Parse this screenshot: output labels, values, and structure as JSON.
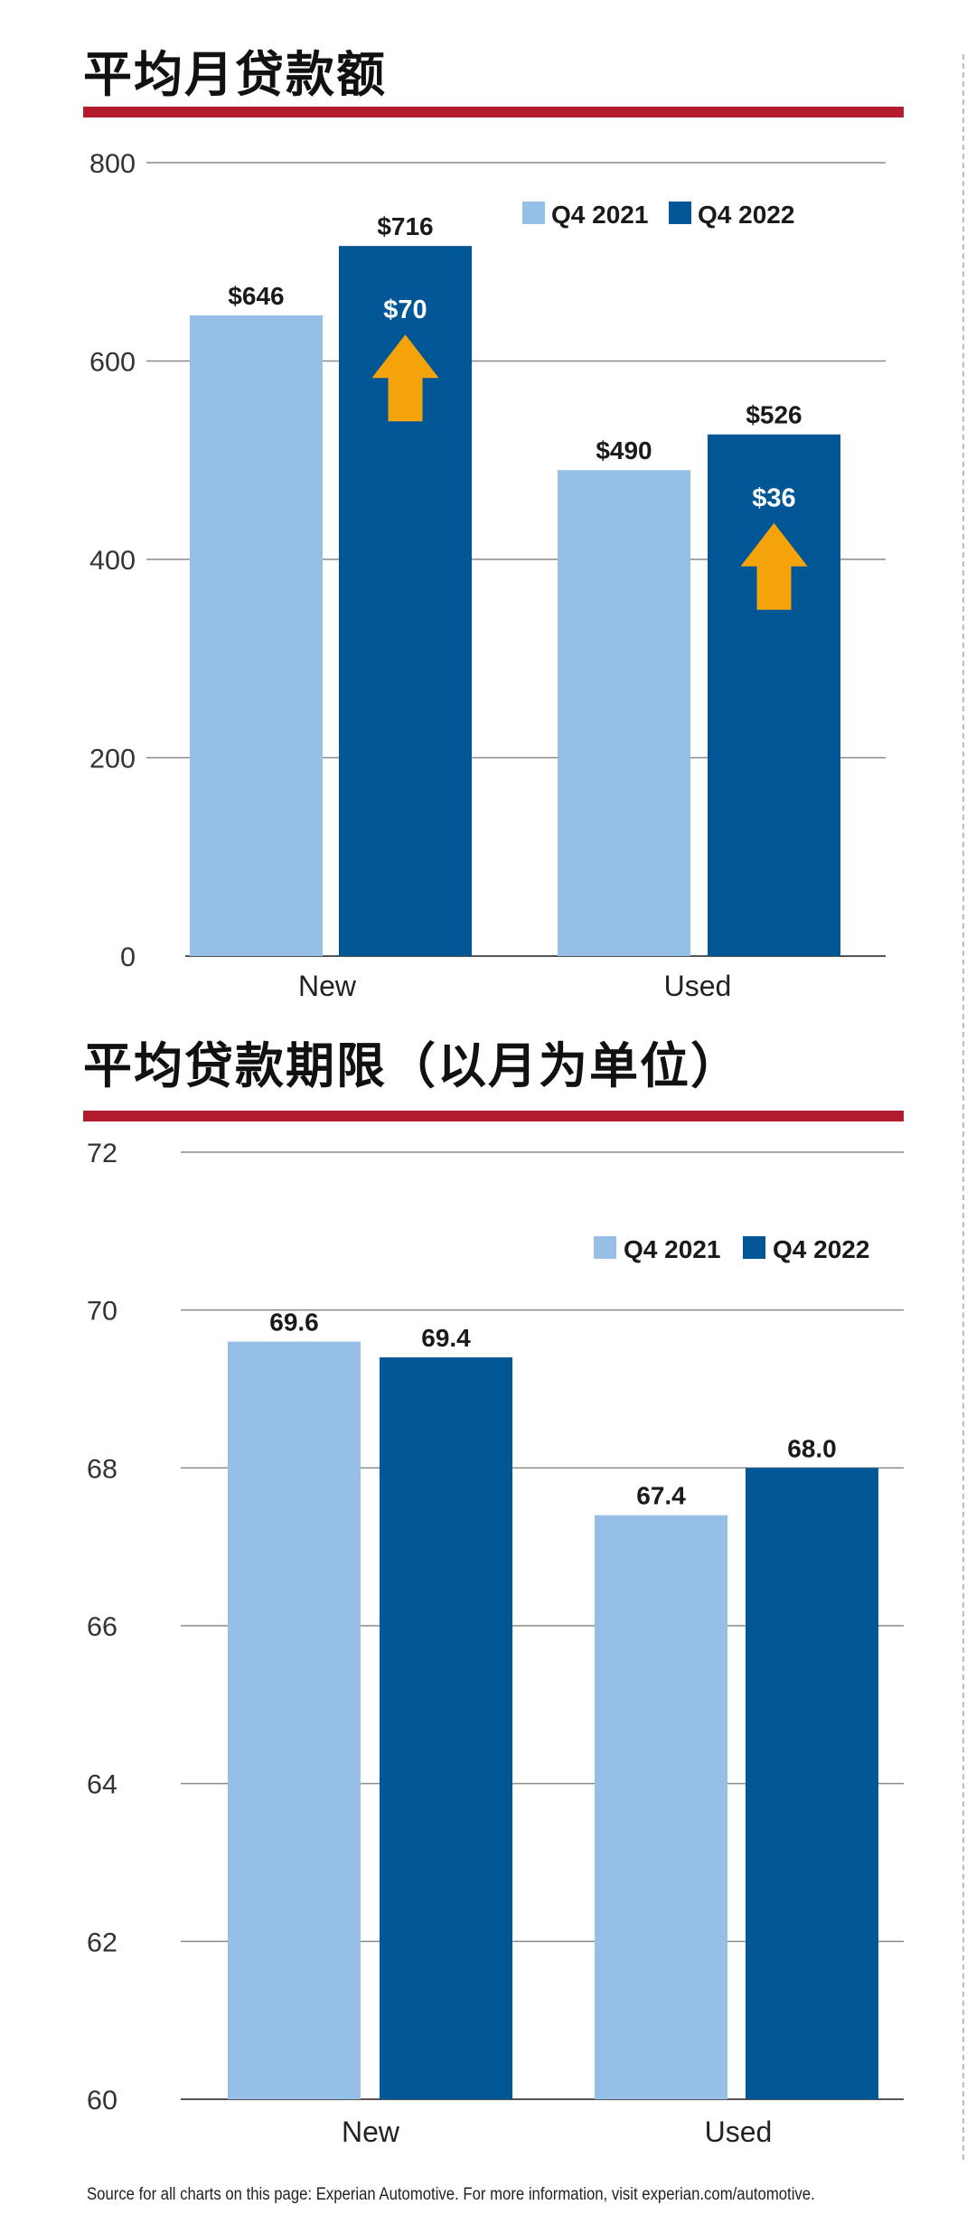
{
  "colors": {
    "q4_2021": "#95bfe6",
    "q4_2022": "#015695",
    "title_rule": "#b31b2f",
    "arrow": "#f5a30a",
    "grid": "#8a8a8a",
    "text": "#1a1a1a"
  },
  "icons": {
    "increase_arrow": "arrow-up-icon"
  },
  "charts": [
    {
      "id": "payment",
      "title": "平均月贷款额",
      "legend": [
        "Q4 2021",
        "Q4 2022"
      ],
      "chart_data": {
        "type": "bar",
        "title": "平均月贷款额",
        "categories": [
          "New",
          "Used"
        ],
        "series": [
          {
            "name": "Q4 2021",
            "values": [
              646,
              490
            ],
            "labels": [
              "$646",
              "$490"
            ]
          },
          {
            "name": "Q4 2022",
            "values": [
              716,
              526
            ],
            "labels": [
              "$716",
              "$526"
            ]
          }
        ],
        "changes": [
          {
            "category": "New",
            "label": "$70",
            "direction": "up"
          },
          {
            "category": "Used",
            "label": "$36",
            "direction": "up"
          }
        ],
        "ylim": [
          0,
          800
        ],
        "yticks": [
          0,
          200,
          400,
          600,
          800
        ],
        "ytick_labels": [
          "0",
          "200",
          "400",
          "600",
          "800"
        ],
        "grid": true,
        "legend_position": "top-right"
      }
    },
    {
      "id": "term",
      "title": "平均贷款期限（以月为单位）",
      "legend": [
        "Q4 2021",
        "Q4 2022"
      ],
      "chart_data": {
        "type": "bar",
        "title": "平均贷款期限（以月为单位）",
        "categories": [
          "New",
          "Used"
        ],
        "series": [
          {
            "name": "Q4 2021",
            "values": [
              69.6,
              67.4
            ],
            "labels": [
              "69.6",
              "67.4"
            ]
          },
          {
            "name": "Q4 2022",
            "values": [
              69.4,
              68.0
            ],
            "labels": [
              "69.4",
              "68.0"
            ]
          }
        ],
        "ylim": [
          60,
          72
        ],
        "yticks": [
          60,
          62,
          64,
          66,
          68,
          70,
          72
        ],
        "ytick_labels": [
          "60",
          "62",
          "64",
          "66",
          "68",
          "70",
          "72"
        ],
        "grid": true,
        "legend_position": "top-right"
      }
    }
  ],
  "footer": "Source for all charts on this page: Experian Automotive. For more information, visit experian.com/automotive."
}
